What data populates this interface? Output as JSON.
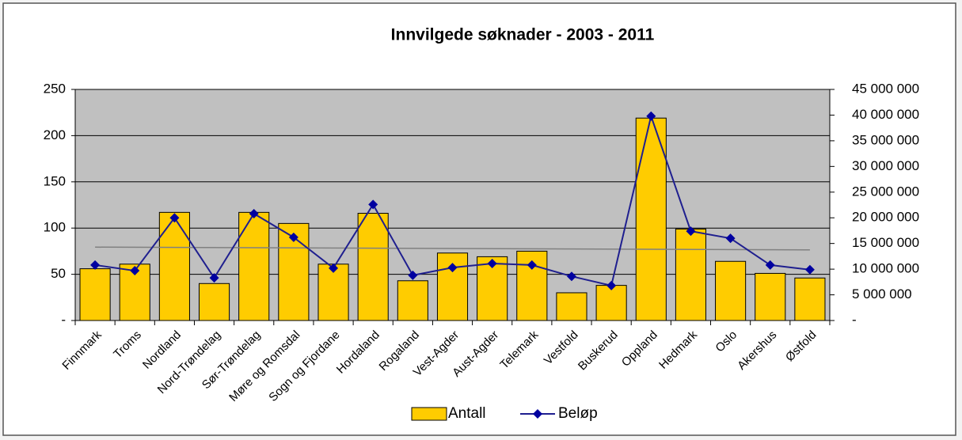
{
  "chart_data": {
    "type": "bar-line",
    "title": "Innvilgede søknader - 2003 - 2011",
    "categories": [
      "Finnmark",
      "Troms",
      "Nordland",
      "Nord-Trøndelag",
      "Sør-Trøndelag",
      "Møre og Romsdal",
      "Sogn og Fjordane",
      "Hordaland",
      "Rogaland",
      "Vest-Agder",
      "Aust-Agder",
      "Telemark",
      "Vestfold",
      "Buskerud",
      "Oppland",
      "Hedmark",
      "Oslo",
      "Akershus",
      "Østfold"
    ],
    "series": [
      {
        "name": "Antall",
        "type": "bar",
        "color": "#ffcc00",
        "values": [
          56,
          61,
          117,
          40,
          117,
          105,
          61,
          116,
          43,
          73,
          69,
          75,
          30,
          38,
          219,
          99,
          64,
          51,
          46
        ],
        "trendline": true
      },
      {
        "name": "Beløp",
        "type": "line",
        "axis": "y2",
        "color": "#1f1f8f",
        "values": [
          10800000,
          9700000,
          20000000,
          8300000,
          20800000,
          16200000,
          10200000,
          22600000,
          8800000,
          10300000,
          11100000,
          10800000,
          8600000,
          6800000,
          39800000,
          17400000,
          16000000,
          10800000,
          9900000
        ]
      }
    ],
    "ylim": [
      0,
      250
    ],
    "yticks": [
      {
        "value": 0,
        "label": "-"
      },
      50,
      100,
      150,
      200,
      250
    ],
    "y2lim": [
      0,
      45000000
    ],
    "y2ticks": [
      {
        "value": 0,
        "label": "-"
      },
      {
        "value": 5000000,
        "label": "5 000 000"
      },
      {
        "value": 10000000,
        "label": "10 000 000"
      },
      {
        "value": 15000000,
        "label": "15 000 000"
      },
      {
        "value": 20000000,
        "label": "20 000 000"
      },
      {
        "value": 25000000,
        "label": "25 000 000"
      },
      {
        "value": 30000000,
        "label": "30 000 000"
      },
      {
        "value": 35000000,
        "label": "35 000 000"
      },
      {
        "value": 40000000,
        "label": "40 000 000"
      },
      {
        "value": 45000000,
        "label": "45 000 000"
      }
    ],
    "grid": true
  }
}
